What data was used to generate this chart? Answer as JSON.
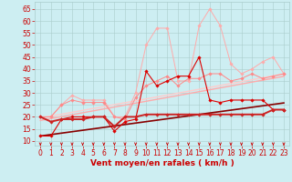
{
  "x": [
    0,
    1,
    2,
    3,
    4,
    5,
    6,
    7,
    8,
    9,
    10,
    11,
    12,
    13,
    14,
    15,
    16,
    17,
    18,
    19,
    20,
    21,
    22,
    23
  ],
  "series": [
    {
      "name": "line1_light_pink_spiky",
      "color": "#ffaaaa",
      "linewidth": 0.7,
      "marker": "D",
      "markersize": 1.8,
      "y": [
        20,
        20,
        25,
        29,
        27,
        27,
        27,
        20,
        20,
        30,
        50,
        57,
        57,
        35,
        35,
        58,
        65,
        58,
        42,
        38,
        40,
        43,
        45,
        38
      ]
    },
    {
      "name": "line2_medium_pink_spiky",
      "color": "#ff8888",
      "linewidth": 0.7,
      "marker": "D",
      "markersize": 1.8,
      "y": [
        20,
        20,
        25,
        27,
        26,
        26,
        26,
        20,
        19,
        28,
        33,
        35,
        37,
        33,
        36,
        36,
        38,
        38,
        35,
        36,
        38,
        36,
        37,
        38
      ]
    },
    {
      "name": "line3_regression_lightest",
      "color": "#ffcccc",
      "linewidth": 1.0,
      "marker": null,
      "y": [
        19.5,
        20.3,
        21.1,
        21.9,
        22.7,
        23.5,
        24.3,
        25.1,
        25.9,
        26.7,
        27.5,
        28.3,
        29.1,
        29.9,
        30.7,
        31.5,
        32.3,
        33.1,
        33.9,
        34.7,
        35.5,
        36.3,
        37.1,
        37.9
      ]
    },
    {
      "name": "line4_regression_light",
      "color": "#ffaaaa",
      "linewidth": 1.0,
      "marker": null,
      "y": [
        18.5,
        19.3,
        20.1,
        20.9,
        21.7,
        22.5,
        23.3,
        24.1,
        24.9,
        25.7,
        26.5,
        27.3,
        28.1,
        28.9,
        29.7,
        30.5,
        31.3,
        32.1,
        32.9,
        33.7,
        34.5,
        35.3,
        36.1,
        36.9
      ]
    },
    {
      "name": "line5_dark_red_spiky",
      "color": "#dd0000",
      "linewidth": 0.8,
      "marker": "D",
      "markersize": 1.8,
      "y": [
        12,
        12,
        19,
        20,
        20,
        20,
        20,
        14,
        18,
        19,
        39,
        33,
        35,
        37,
        37,
        45,
        27,
        26,
        27,
        27,
        27,
        27,
        23,
        23
      ]
    },
    {
      "name": "line6_dark_regression",
      "color": "#880000",
      "linewidth": 1.2,
      "marker": null,
      "y": [
        12,
        12.6,
        13.2,
        13.8,
        14.4,
        15.0,
        15.6,
        16.2,
        16.8,
        17.4,
        18.0,
        18.6,
        19.2,
        19.8,
        20.4,
        21.0,
        21.6,
        22.2,
        22.8,
        23.4,
        24.0,
        24.6,
        25.2,
        25.8
      ]
    },
    {
      "name": "line7_red_base_flat",
      "color": "#cc2222",
      "linewidth": 1.4,
      "marker": "D",
      "markersize": 1.8,
      "y": [
        20,
        18,
        19,
        19,
        19,
        20,
        20,
        16,
        20,
        20,
        21,
        21,
        21,
        21,
        21,
        21,
        21,
        21,
        21,
        21,
        21,
        21,
        23,
        23
      ]
    }
  ],
  "xlabel": "Vent moyen/en rafales ( km/h )",
  "xlim": [
    -0.5,
    23.5
  ],
  "ylim": [
    8,
    68
  ],
  "yticks": [
    10,
    15,
    20,
    25,
    30,
    35,
    40,
    45,
    50,
    55,
    60,
    65
  ],
  "xticks": [
    0,
    1,
    2,
    3,
    4,
    5,
    6,
    7,
    8,
    9,
    10,
    11,
    12,
    13,
    14,
    15,
    16,
    17,
    18,
    19,
    20,
    21,
    22,
    23
  ],
  "bg_color": "#cdeef2",
  "grid_color": "#aacccc",
  "text_color": "#cc0000",
  "tick_fontsize": 5.5,
  "label_fontsize": 6.5,
  "arrow_angles_deg": [
    90,
    80,
    75,
    75,
    75,
    75,
    75,
    75,
    75,
    70,
    65,
    65,
    60,
    60,
    55,
    55,
    50,
    50,
    50,
    50,
    50,
    50,
    50,
    50
  ]
}
